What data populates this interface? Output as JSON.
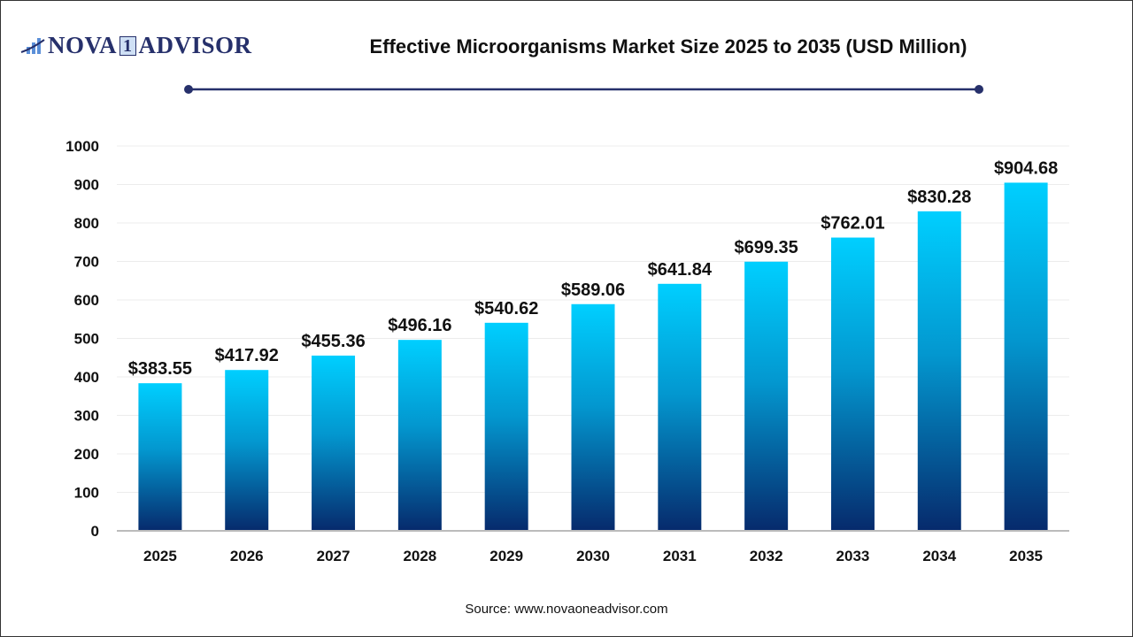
{
  "logo": {
    "left": "NOVA",
    "mid": "1",
    "right": "ADVISOR"
  },
  "title": "Effective Microorganisms Market Size 2025 to 2035 (USD Million)",
  "source": "Source: www.novaoneadvisor.com",
  "colors": {
    "bar_top": "#00cfff",
    "bar_bottom": "#062a6c",
    "title_rule": "#26306b"
  },
  "chart_data": {
    "type": "bar",
    "title": "Effective Microorganisms Market Size 2025 to 2035 (USD Million)",
    "categories": [
      "2025",
      "2026",
      "2027",
      "2028",
      "2029",
      "2030",
      "2031",
      "2032",
      "2033",
      "2034",
      "2035"
    ],
    "values": [
      383.55,
      417.92,
      455.36,
      496.16,
      540.62,
      589.06,
      641.84,
      699.35,
      762.01,
      830.28,
      904.68
    ],
    "data_labels": [
      "$383.55",
      "$417.92",
      "$455.36",
      "$496.16",
      "$540.62",
      "$589.06",
      "$641.84",
      "$699.35",
      "$762.01",
      "$830.28",
      "$904.68"
    ],
    "yticks": [
      0,
      100,
      200,
      300,
      400,
      500,
      600,
      700,
      800,
      900,
      1000
    ],
    "ylim": [
      0,
      1000
    ],
    "xlabel": "",
    "ylabel": "",
    "grid": true,
    "legend": "none"
  }
}
